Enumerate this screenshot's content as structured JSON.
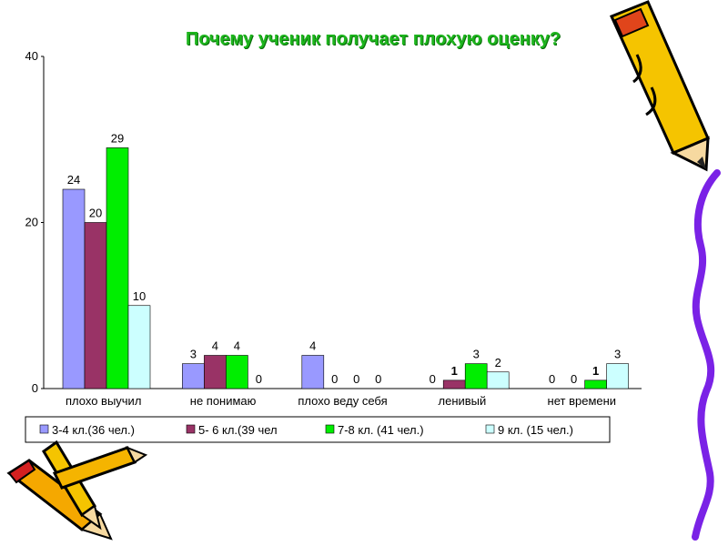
{
  "chart_data": {
    "type": "bar",
    "title": "Почему ученик получает плохую оценку?",
    "categories": [
      "плохо выучил",
      "не понимаю",
      "плохо веду себя",
      "ленивый",
      "нет времени"
    ],
    "series": [
      {
        "name": "3-4 кл.(36 чел.)",
        "color": "#9999ff",
        "values": [
          24,
          3,
          4,
          0,
          0
        ]
      },
      {
        "name": "5- 6 кл.(39 чел",
        "color": "#993366",
        "values": [
          20,
          4,
          0,
          1,
          0
        ]
      },
      {
        "name": "7-8 кл. (41 чел.)",
        "color": "#00ee00",
        "values": [
          29,
          4,
          0,
          3,
          1
        ]
      },
      {
        "name": "9 кл. (15 чел.)",
        "color": "#ccffff",
        "values": [
          10,
          0,
          0,
          2,
          3
        ]
      }
    ],
    "bold_labels": [
      [
        false,
        false,
        false,
        false,
        false
      ],
      [
        false,
        false,
        false,
        true,
        false
      ],
      [
        false,
        false,
        false,
        false,
        true
      ],
      [
        false,
        false,
        false,
        false,
        false
      ]
    ],
    "yticks": [
      0,
      20,
      40
    ],
    "ylim": [
      0,
      40
    ],
    "grid": false,
    "legend_position": "bottom"
  },
  "decorations": [
    "crayon-top-right",
    "purple-squiggle-right",
    "crayons-bottom-left"
  ]
}
